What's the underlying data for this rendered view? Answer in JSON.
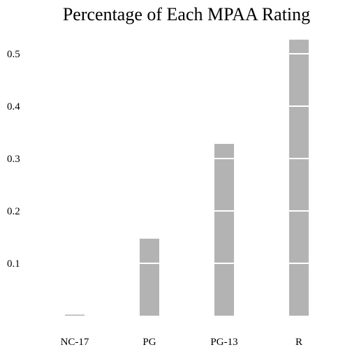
{
  "chart_data": {
    "type": "bar",
    "title": "Percentage of Each MPAA Rating",
    "xlabel": "",
    "ylabel": "",
    "categories": [
      "NC-17",
      "PG",
      "PG-13",
      "R"
    ],
    "values": [
      0.002,
      0.147,
      0.328,
      0.527
    ],
    "ylim": [
      0,
      0.55
    ],
    "yticks": [
      0.1,
      0.2,
      0.3,
      0.4,
      0.5
    ],
    "ytick_labels": [
      "0.1",
      "0.2",
      "0.3",
      "0.4",
      "0.5"
    ],
    "grid": "white horizontal lines drawn over bars",
    "legend": "none",
    "bar_color": "#b3b3b3",
    "grid_color": "#ffffff"
  }
}
